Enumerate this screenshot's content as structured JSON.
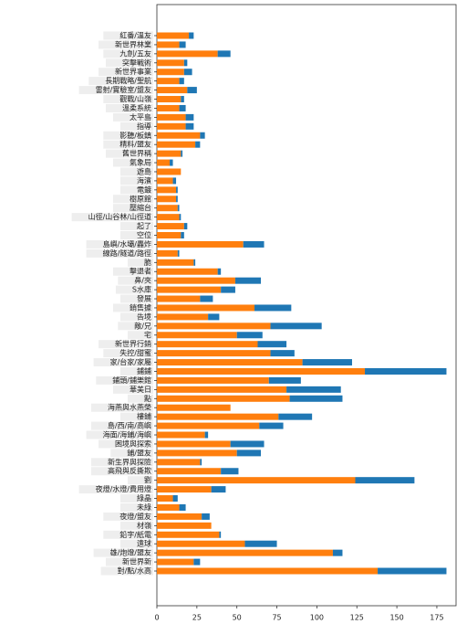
{
  "chart_data": {
    "type": "barh_stacked",
    "categories": [
      "紅番/溫友",
      "新世界林業",
      "九劍/五友",
      "突擊戰術",
      "新世界事業",
      "長期戰略/聖航",
      "雷射/實驗室/盟友",
      "觀戰/山嶺",
      "溫柔系統",
      "太平島",
      "指導",
      "影聽/板鎮",
      "精料/盟友",
      "舊世界稱",
      "氣象局",
      "遊島",
      "海濱",
      "電鍍",
      "樹原館",
      "壓縮台",
      "山徑/山谷林/山徑道",
      "起了",
      "空位",
      "島嶼/水壩/轟炸",
      "線路/隧道/路徑",
      "脆",
      "擊退者",
      "鼻/夾",
      "S水庫",
      "發展",
      "銷售據",
      "告境",
      "敵/兄",
      "宅",
      "新世界行銷",
      "失控/甜蜜",
      "家/台家/家屬",
      "鋪鋪",
      "鋪頭/鋪樂館",
      "華美日",
      "點",
      "海燕與水燕榮",
      "樓鋪",
      "島/西/南/高嶼",
      "海面/海鋪/海嶼",
      "困境與探索",
      "鋪/盟友",
      "新生界與探險",
      "高飛與反撕欺",
      "劉",
      "夜燈/水燈/費用燈",
      "綠晶",
      "未綠",
      "夜燈/盟友",
      "材嶺",
      "鉛字/紙電",
      "遠球",
      "雄/炮燈/盟友",
      "新世界新",
      "對/點/水高"
    ],
    "series": [
      {
        "color": "#ff7f0e",
        "values": [
          20,
          14,
          38,
          17,
          17,
          14,
          19,
          15,
          14,
          18,
          18,
          27,
          24,
          15,
          8,
          15,
          10,
          12,
          12,
          13,
          14,
          17,
          15,
          54,
          13,
          23,
          38,
          49,
          40,
          27,
          61,
          32,
          71,
          50,
          63,
          71,
          91,
          130,
          70,
          81,
          83,
          46,
          76,
          64,
          30,
          46,
          50,
          27,
          40,
          124,
          34,
          10,
          14,
          28,
          34,
          39,
          55,
          110,
          23,
          138
        ]
      },
      {
        "color": "#1f77b4",
        "values": [
          3,
          4,
          8,
          2,
          5,
          3,
          6,
          2,
          4,
          5,
          5,
          3,
          3,
          1,
          2,
          0,
          2,
          1,
          1,
          1,
          1,
          2,
          2,
          13,
          1,
          1,
          2,
          16,
          9,
          8,
          23,
          7,
          32,
          16,
          18,
          15,
          31,
          51,
          20,
          34,
          33,
          0,
          21,
          15,
          2,
          21,
          15,
          1,
          11,
          37,
          9,
          3,
          4,
          5,
          0,
          1,
          20,
          6,
          4,
          43
        ]
      }
    ],
    "xlim": [
      0,
      187
    ],
    "xticks": [
      0,
      25,
      50,
      75,
      100,
      125,
      150,
      175
    ]
  }
}
